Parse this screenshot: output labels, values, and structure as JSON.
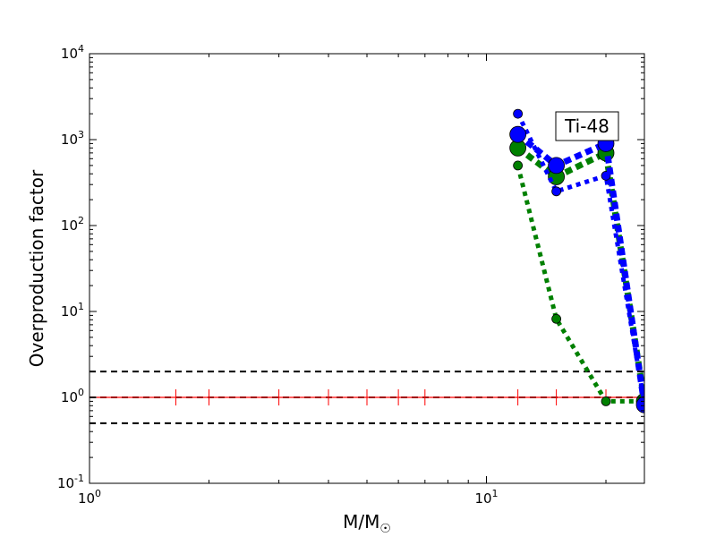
{
  "chart_data": {
    "type": "line",
    "title": "",
    "xlabel": "M/M",
    "xlabel_subscript": "☉",
    "ylabel": "Overproduction factor",
    "xscale": "log",
    "yscale": "log",
    "xlim": [
      1,
      25
    ],
    "ylim": [
      0.1,
      10000
    ],
    "x_ticks": [
      {
        "value": 1,
        "base": "10",
        "exp": "0"
      },
      {
        "value": 10,
        "base": "10",
        "exp": "1"
      }
    ],
    "y_ticks": [
      {
        "value": 0.1,
        "base": "10",
        "exp": "-1"
      },
      {
        "value": 1,
        "base": "10",
        "exp": "0"
      },
      {
        "value": 10,
        "base": "10",
        "exp": "1"
      },
      {
        "value": 100,
        "base": "10",
        "exp": "2"
      },
      {
        "value": 1000,
        "base": "10",
        "exp": "3"
      },
      {
        "value": 10000,
        "base": "10",
        "exp": "4"
      }
    ],
    "annotation": "Ti-48",
    "reference_lines": [
      2.0,
      1.0,
      0.5
    ],
    "series": [
      {
        "color": "#ff0000",
        "style": "solid-ticks",
        "x": [
          1,
          1.65,
          2,
          3,
          4,
          5,
          6,
          7,
          12,
          15,
          20,
          25
        ],
        "y": [
          1,
          1,
          1,
          1,
          1,
          1,
          1,
          1,
          1,
          1,
          1,
          1
        ]
      },
      {
        "color": "#008000",
        "style": "dotted-thin",
        "marker": "small",
        "x": [
          12,
          15,
          20,
          25
        ],
        "y": [
          500,
          8.2,
          0.9,
          0.9
        ]
      },
      {
        "color": "#008000",
        "style": "dotted-thick",
        "marker": "large",
        "x": [
          12,
          15,
          20,
          25
        ],
        "y": [
          800,
          370,
          700,
          0.9
        ]
      },
      {
        "color": "#0000ff",
        "style": "dotted-thin",
        "marker": "small",
        "x": [
          12,
          15,
          20,
          25
        ],
        "y": [
          2000,
          250,
          380,
          0.85
        ]
      },
      {
        "color": "#0000ff",
        "style": "dotted-thick",
        "marker": "large",
        "x": [
          12,
          15,
          20,
          25
        ],
        "y": [
          1150,
          500,
          900,
          0.82
        ]
      }
    ]
  }
}
